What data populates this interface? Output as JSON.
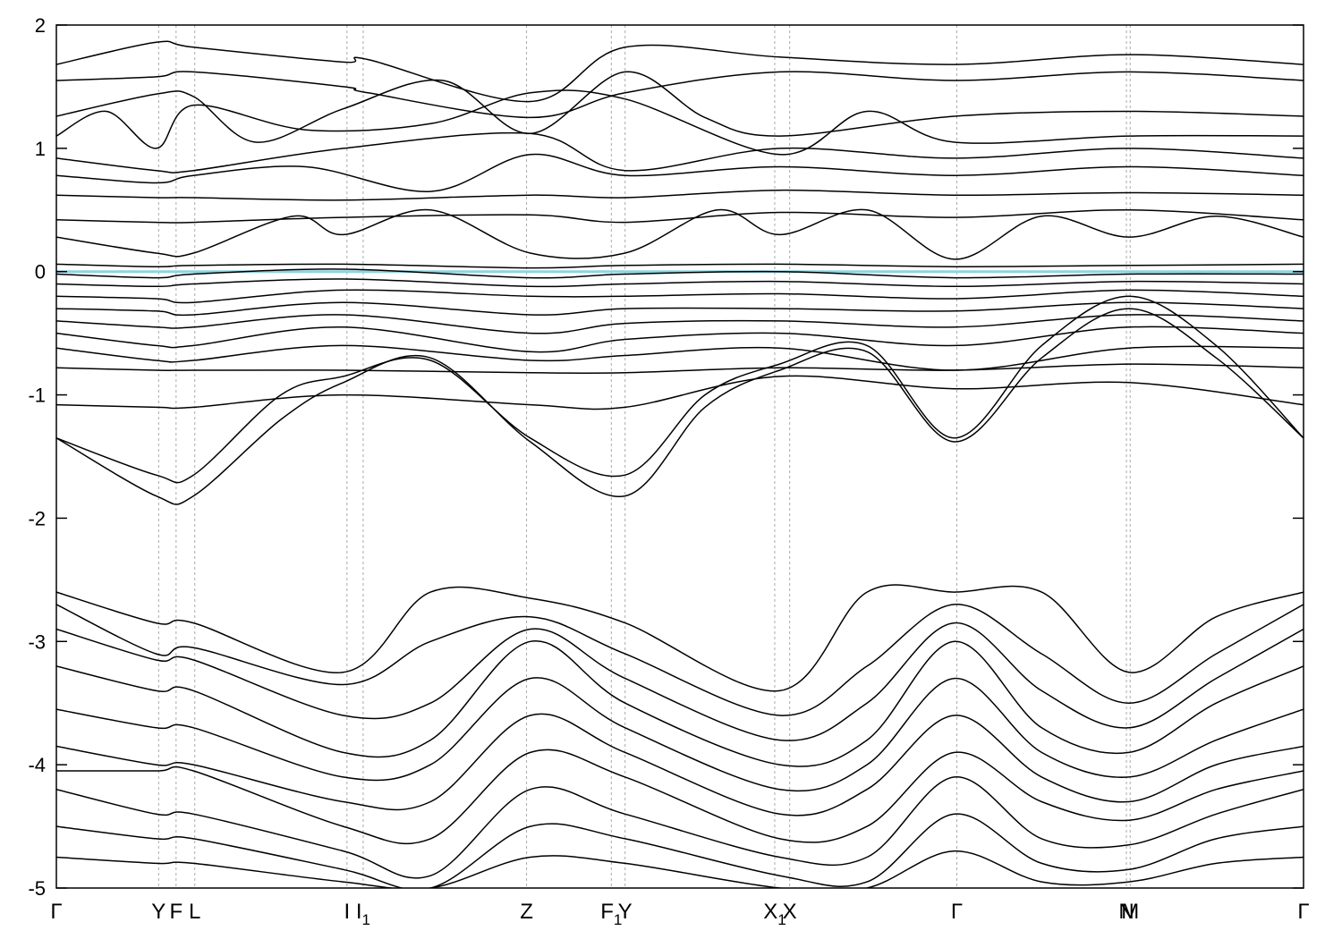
{
  "chart_data": {
    "type": "line",
    "title": "",
    "xlabel": "",
    "ylabel": "",
    "ylim": [
      -5,
      2
    ],
    "xlim": [
      0,
      1
    ],
    "grid": "vertical dashed lines at high-symmetry points",
    "legend": "none",
    "colors": {
      "band": "#000000",
      "fermi": "#8fd3e0",
      "grid": "#aaaaaa"
    },
    "y_ticks": [
      {
        "value": 2,
        "label": "2"
      },
      {
        "value": 1,
        "label": "1"
      },
      {
        "value": 0,
        "label": "0"
      },
      {
        "value": -1,
        "label": "-1"
      },
      {
        "value": -2,
        "label": "-2"
      },
      {
        "value": -3,
        "label": "-3"
      },
      {
        "value": -4,
        "label": "-4"
      },
      {
        "value": -5,
        "label": "-5"
      }
    ],
    "kpoints": [
      {
        "x": 0.0,
        "label": "Γ",
        "sub": ""
      },
      {
        "x": 0.082,
        "label": "Y",
        "sub": ""
      },
      {
        "x": 0.096,
        "label": "F",
        "sub": ""
      },
      {
        "x": 0.111,
        "label": "L",
        "sub": ""
      },
      {
        "x": 0.233,
        "label": "I",
        "sub": ""
      },
      {
        "x": 0.246,
        "label": "I",
        "sub": "1"
      },
      {
        "x": 0.377,
        "label": "Z",
        "sub": ""
      },
      {
        "x": 0.445,
        "label": "F",
        "sub": "1"
      },
      {
        "x": 0.456,
        "label": "Y",
        "sub": ""
      },
      {
        "x": 0.576,
        "label": "X",
        "sub": "1"
      },
      {
        "x": 0.588,
        "label": "X",
        "sub": ""
      },
      {
        "x": 0.722,
        "label": "Γ",
        "sub": ""
      },
      {
        "x": 0.858,
        "label": "N",
        "sub": ""
      },
      {
        "x": 0.861,
        "label": "M",
        "sub": ""
      },
      {
        "x": 1.0,
        "label": "Γ",
        "sub": ""
      }
    ],
    "fermi_level": {
      "y": 0
    },
    "series": [
      {
        "x": [
          0,
          0.08,
          0.11,
          0.23,
          0.25,
          0.38,
          0.456,
          0.58,
          0.72,
          0.86,
          1.0
        ],
        "y": [
          1.68,
          1.86,
          1.82,
          1.7,
          1.72,
          1.38,
          1.82,
          1.74,
          1.68,
          1.76,
          1.68
        ]
      },
      {
        "x": [
          0,
          0.08,
          0.11,
          0.23,
          0.25,
          0.38,
          0.456,
          0.58,
          0.72,
          0.86,
          1.0
        ],
        "y": [
          1.55,
          1.58,
          1.62,
          1.5,
          1.45,
          1.25,
          1.45,
          1.62,
          1.55,
          1.62,
          1.55
        ]
      },
      {
        "x": [
          0,
          0.08,
          0.11,
          0.16,
          0.23,
          0.31,
          0.38,
          0.456,
          0.52,
          0.58,
          0.72,
          0.86,
          1.0
        ],
        "y": [
          1.26,
          1.44,
          1.42,
          1.05,
          1.32,
          1.55,
          1.12,
          1.62,
          1.25,
          1.1,
          1.26,
          1.3,
          1.26
        ]
      },
      {
        "x": [
          0,
          0.04,
          0.08,
          0.11,
          0.2,
          0.3,
          0.38,
          0.456,
          0.58,
          0.65,
          0.72,
          0.86,
          1.0
        ],
        "y": [
          1.1,
          1.3,
          1.0,
          1.35,
          1.15,
          1.2,
          1.45,
          1.4,
          0.95,
          1.3,
          1.05,
          1.1,
          1.1
        ]
      },
      {
        "x": [
          0,
          0.08,
          0.11,
          0.23,
          0.38,
          0.456,
          0.58,
          0.72,
          0.86,
          1.0
        ],
        "y": [
          0.92,
          0.82,
          0.82,
          1.0,
          1.12,
          0.82,
          1.0,
          0.92,
          1.0,
          0.92
        ]
      },
      {
        "x": [
          0,
          0.08,
          0.11,
          0.2,
          0.3,
          0.38,
          0.456,
          0.58,
          0.72,
          0.86,
          1.0
        ],
        "y": [
          0.78,
          0.72,
          0.78,
          0.85,
          0.65,
          0.95,
          0.78,
          0.85,
          0.78,
          0.85,
          0.78
        ]
      },
      {
        "x": [
          0,
          0.08,
          0.11,
          0.23,
          0.38,
          0.456,
          0.58,
          0.72,
          0.86,
          1.0
        ],
        "y": [
          0.62,
          0.6,
          0.6,
          0.58,
          0.62,
          0.6,
          0.66,
          0.62,
          0.64,
          0.62
        ]
      },
      {
        "x": [
          0,
          0.08,
          0.11,
          0.23,
          0.38,
          0.456,
          0.58,
          0.72,
          0.86,
          1.0
        ],
        "y": [
          0.42,
          0.4,
          0.4,
          0.44,
          0.46,
          0.4,
          0.48,
          0.44,
          0.5,
          0.42
        ]
      },
      {
        "x": [
          0,
          0.08,
          0.11,
          0.19,
          0.23,
          0.3,
          0.38,
          0.456,
          0.53,
          0.58,
          0.65,
          0.72,
          0.79,
          0.86,
          0.93,
          1.0
        ],
        "y": [
          0.28,
          0.15,
          0.15,
          0.45,
          0.3,
          0.5,
          0.15,
          0.15,
          0.5,
          0.3,
          0.5,
          0.1,
          0.45,
          0.28,
          0.45,
          0.28
        ]
      },
      {
        "x": [
          0,
          0.08,
          0.11,
          0.23,
          0.38,
          0.456,
          0.58,
          0.72,
          0.86,
          1.0
        ],
        "y": [
          0.06,
          0.04,
          0.05,
          0.06,
          0.03,
          0.05,
          0.06,
          0.04,
          0.05,
          0.06
        ]
      },
      {
        "x": [
          0,
          0.08,
          0.11,
          0.23,
          0.38,
          0.456,
          0.58,
          0.72,
          0.86,
          1.0
        ],
        "y": [
          -0.02,
          -0.05,
          -0.02,
          0.02,
          -0.05,
          -0.02,
          0.0,
          -0.05,
          -0.02,
          -0.02
        ]
      },
      {
        "x": [
          0,
          0.08,
          0.11,
          0.23,
          0.38,
          0.456,
          0.58,
          0.72,
          0.86,
          1.0
        ],
        "y": [
          -0.1,
          -0.12,
          -0.1,
          -0.06,
          -0.12,
          -0.1,
          -0.08,
          -0.12,
          -0.08,
          -0.1
        ]
      },
      {
        "x": [
          0,
          0.08,
          0.11,
          0.23,
          0.38,
          0.456,
          0.58,
          0.72,
          0.86,
          1.0
        ],
        "y": [
          -0.2,
          -0.22,
          -0.25,
          -0.15,
          -0.2,
          -0.2,
          -0.18,
          -0.22,
          -0.15,
          -0.2
        ]
      },
      {
        "x": [
          0,
          0.08,
          0.11,
          0.23,
          0.38,
          0.456,
          0.58,
          0.72,
          0.86,
          1.0
        ],
        "y": [
          -0.3,
          -0.32,
          -0.35,
          -0.25,
          -0.35,
          -0.3,
          -0.3,
          -0.32,
          -0.25,
          -0.3
        ]
      },
      {
        "x": [
          0,
          0.08,
          0.11,
          0.23,
          0.38,
          0.456,
          0.58,
          0.72,
          0.86,
          1.0
        ],
        "y": [
          -0.4,
          -0.45,
          -0.45,
          -0.35,
          -0.5,
          -0.42,
          -0.4,
          -0.45,
          -0.35,
          -0.4
        ]
      },
      {
        "x": [
          0,
          0.08,
          0.11,
          0.23,
          0.38,
          0.456,
          0.58,
          0.72,
          0.86,
          1.0
        ],
        "y": [
          -0.5,
          -0.6,
          -0.6,
          -0.45,
          -0.65,
          -0.55,
          -0.5,
          -0.6,
          -0.45,
          -0.5
        ]
      },
      {
        "x": [
          0,
          0.08,
          0.11,
          0.23,
          0.38,
          0.456,
          0.58,
          0.72,
          0.86,
          1.0
        ],
        "y": [
          -0.62,
          -0.72,
          -0.72,
          -0.6,
          -0.72,
          -0.68,
          -0.62,
          -0.8,
          -0.62,
          -0.62
        ]
      },
      {
        "x": [
          0,
          0.08,
          0.11,
          0.23,
          0.38,
          0.456,
          0.58,
          0.72,
          0.86,
          1.0
        ],
        "y": [
          -0.78,
          -0.8,
          -0.8,
          -0.8,
          -0.82,
          -0.82,
          -0.78,
          -0.8,
          -0.75,
          -0.78
        ]
      },
      {
        "x": [
          0,
          0.08,
          0.11,
          0.23,
          0.38,
          0.456,
          0.58,
          0.72,
          0.86,
          1.0
        ],
        "y": [
          -1.08,
          -1.1,
          -1.1,
          -1.0,
          -1.08,
          -1.1,
          -0.85,
          -0.95,
          -0.9,
          -1.08
        ]
      },
      {
        "x": [
          0,
          0.08,
          0.11,
          0.18,
          0.23,
          0.3,
          0.38,
          0.456,
          0.52,
          0.58,
          0.65,
          0.72,
          0.79,
          0.86,
          0.93,
          1.0
        ],
        "y": [
          -1.35,
          -1.65,
          -1.65,
          -1.0,
          -0.85,
          -0.72,
          -1.35,
          -1.65,
          -1.0,
          -0.75,
          -0.6,
          -1.35,
          -0.6,
          -0.2,
          -0.6,
          -1.35
        ]
      },
      {
        "x": [
          0,
          0.08,
          0.11,
          0.18,
          0.23,
          0.3,
          0.38,
          0.456,
          0.52,
          0.58,
          0.65,
          0.72,
          0.79,
          0.86,
          0.93,
          1.0
        ],
        "y": [
          -1.35,
          -1.82,
          -1.82,
          -1.2,
          -0.9,
          -0.7,
          -1.38,
          -1.82,
          -1.1,
          -0.8,
          -0.65,
          -1.38,
          -0.7,
          -0.3,
          -0.7,
          -1.35
        ]
      },
      {
        "x": [
          0,
          0.08,
          0.11,
          0.23,
          0.3,
          0.38,
          0.456,
          0.58,
          0.65,
          0.72,
          0.79,
          0.86,
          0.93,
          1.0
        ],
        "y": [
          -2.6,
          -2.85,
          -2.85,
          -3.25,
          -2.6,
          -2.65,
          -2.85,
          -3.4,
          -2.6,
          -2.6,
          -2.6,
          -3.25,
          -2.8,
          -2.6
        ]
      },
      {
        "x": [
          0,
          0.08,
          0.11,
          0.23,
          0.3,
          0.38,
          0.456,
          0.58,
          0.65,
          0.72,
          0.79,
          0.86,
          0.93,
          1.0
        ],
        "y": [
          -2.7,
          -3.1,
          -3.05,
          -3.35,
          -3.0,
          -2.8,
          -3.1,
          -3.6,
          -3.2,
          -2.7,
          -3.1,
          -3.5,
          -3.1,
          -2.7
        ]
      },
      {
        "x": [
          0,
          0.08,
          0.11,
          0.23,
          0.3,
          0.38,
          0.456,
          0.58,
          0.65,
          0.72,
          0.79,
          0.86,
          0.93,
          1.0
        ],
        "y": [
          -2.9,
          -3.15,
          -3.15,
          -3.6,
          -3.5,
          -2.9,
          -3.3,
          -3.8,
          -3.5,
          -2.85,
          -3.4,
          -3.7,
          -3.3,
          -2.9
        ]
      },
      {
        "x": [
          0,
          0.08,
          0.11,
          0.23,
          0.3,
          0.38,
          0.456,
          0.58,
          0.65,
          0.72,
          0.79,
          0.86,
          0.93,
          1.0
        ],
        "y": [
          -3.2,
          -3.4,
          -3.4,
          -3.9,
          -3.8,
          -3.0,
          -3.5,
          -4.0,
          -3.8,
          -3.0,
          -3.7,
          -3.9,
          -3.5,
          -3.2
        ]
      },
      {
        "x": [
          0,
          0.08,
          0.11,
          0.23,
          0.3,
          0.38,
          0.456,
          0.58,
          0.65,
          0.72,
          0.79,
          0.86,
          0.93,
          1.0
        ],
        "y": [
          -3.55,
          -3.7,
          -3.7,
          -4.1,
          -4.0,
          -3.3,
          -3.7,
          -4.2,
          -4.0,
          -3.3,
          -3.9,
          -4.1,
          -3.8,
          -3.55
        ]
      },
      {
        "x": [
          0,
          0.08,
          0.11,
          0.23,
          0.3,
          0.38,
          0.456,
          0.58,
          0.65,
          0.72,
          0.79,
          0.86,
          0.93,
          1.0
        ],
        "y": [
          -3.85,
          -4.0,
          -4.0,
          -4.3,
          -4.3,
          -3.6,
          -3.9,
          -4.4,
          -4.2,
          -3.6,
          -4.1,
          -4.3,
          -4.0,
          -3.85
        ]
      },
      {
        "x": [
          0,
          0.08,
          0.11,
          0.23,
          0.3,
          0.38,
          0.456,
          0.58,
          0.65,
          0.72,
          0.79,
          0.86,
          0.93,
          1.0
        ],
        "y": [
          -4.05,
          -4.05,
          -4.05,
          -4.5,
          -4.6,
          -3.9,
          -4.1,
          -4.6,
          -4.5,
          -3.9,
          -4.3,
          -4.45,
          -4.2,
          -4.05
        ]
      },
      {
        "x": [
          0,
          0.08,
          0.11,
          0.23,
          0.3,
          0.38,
          0.456,
          0.58,
          0.65,
          0.72,
          0.79,
          0.86,
          0.93,
          1.0
        ],
        "y": [
          -4.2,
          -4.4,
          -4.4,
          -4.7,
          -4.9,
          -4.2,
          -4.4,
          -4.75,
          -4.75,
          -4.1,
          -4.6,
          -4.65,
          -4.4,
          -4.2
        ]
      },
      {
        "x": [
          0,
          0.08,
          0.11,
          0.23,
          0.3,
          0.38,
          0.456,
          0.58,
          0.65,
          0.72,
          0.79,
          0.86,
          0.93,
          1.0
        ],
        "y": [
          -4.5,
          -4.6,
          -4.6,
          -4.85,
          -5.0,
          -4.5,
          -4.6,
          -4.9,
          -4.95,
          -4.4,
          -4.8,
          -4.85,
          -4.6,
          -4.5
        ]
      },
      {
        "x": [
          0,
          0.08,
          0.11,
          0.23,
          0.3,
          0.38,
          0.456,
          0.58,
          0.65,
          0.72,
          0.79,
          0.86,
          0.93,
          1.0
        ],
        "y": [
          -4.75,
          -4.8,
          -4.8,
          -4.95,
          -5.0,
          -4.75,
          -4.8,
          -5.0,
          -5.0,
          -4.7,
          -4.95,
          -4.95,
          -4.8,
          -4.75
        ]
      }
    ]
  }
}
